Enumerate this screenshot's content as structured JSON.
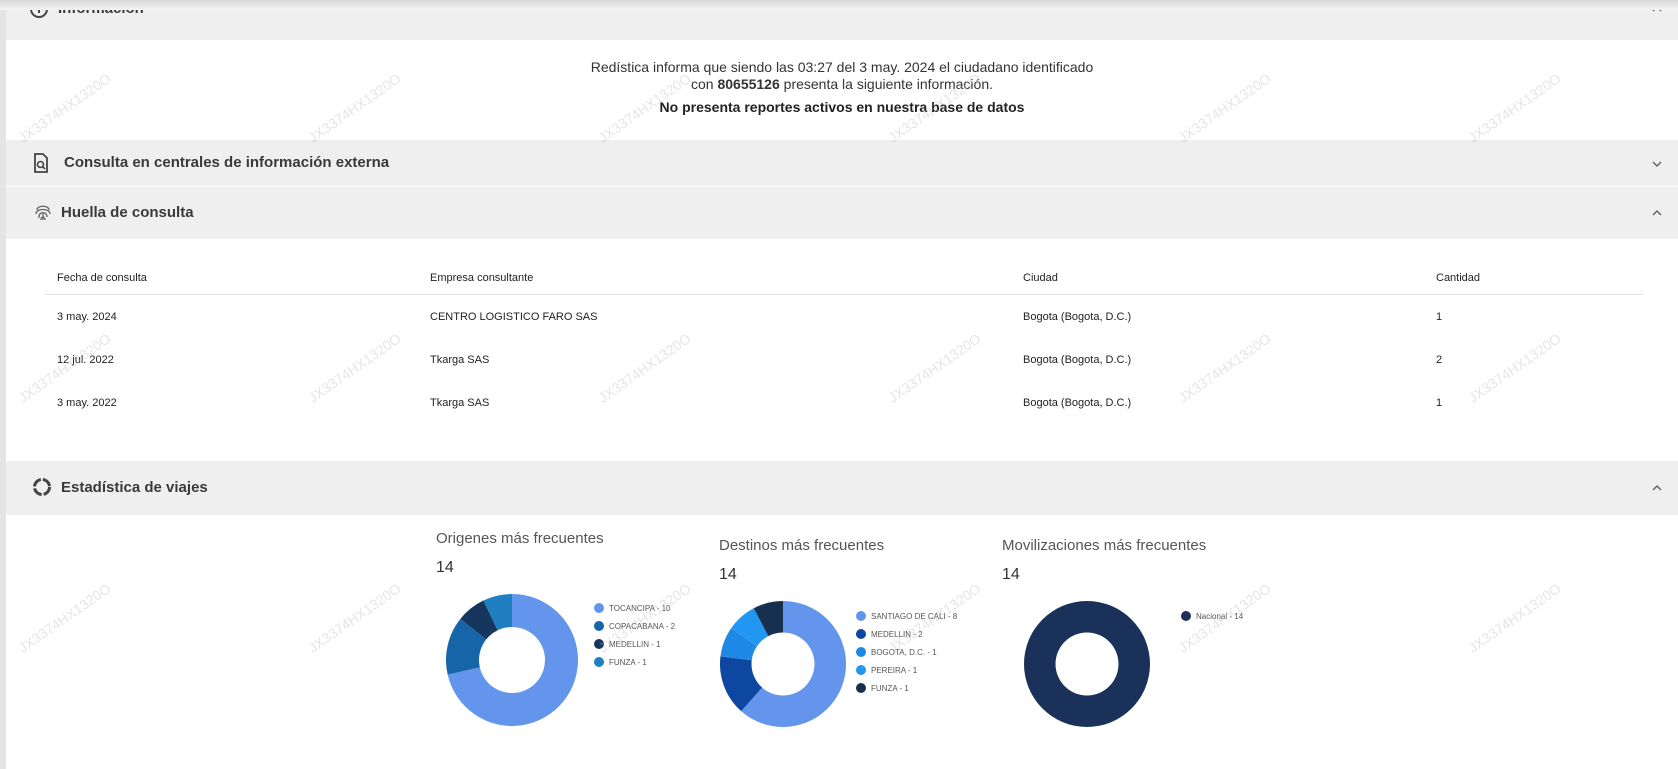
{
  "sections": {
    "info": {
      "title": "Información"
    },
    "external": {
      "title": "Consulta en centrales de información externa"
    },
    "huella": {
      "title": "Huella de consulta"
    },
    "stats": {
      "title": "Estadística de viajes"
    }
  },
  "info": {
    "line1": "Redística informa que siendo las 03:27 del 3 may. 2024 el ciudadano identificado",
    "line2_prefix": "con ",
    "id_number": "80655126",
    "line2_suffix": " presenta la siguiente información.",
    "status": "No presenta reportes activos en nuestra base de datos"
  },
  "huella": {
    "headers": [
      "Fecha de consulta",
      "Empresa consultante",
      "Ciudad",
      "Cantidad"
    ],
    "rows": [
      [
        "3 may. 2024",
        "CENTRO LOGISTICO FARO SAS",
        "Bogota (Bogota, D.C.)",
        "1"
      ],
      [
        "12 jul. 2022",
        "Tkarga SAS",
        "Bogota (Bogota, D.C.)",
        "2"
      ],
      [
        "3 may. 2022",
        "Tkarga SAS",
        "Bogota (Bogota, D.C.)",
        "1"
      ]
    ]
  },
  "watermark": "JX3374HX1320O",
  "chart_data": [
    {
      "type": "pie",
      "title": "Origenes más frecuentes",
      "total": "14",
      "categories": [
        "TOCANCIPA - 10",
        "COPACABANA - 2",
        "MEDELLIN - 1",
        "FUNZA - 1"
      ],
      "values": [
        10,
        2,
        1,
        1
      ],
      "colors": [
        "#6495ed",
        "#1565a8",
        "#17365d",
        "#1f7fc0"
      ]
    },
    {
      "type": "pie",
      "title": "Destinos más frecuentes",
      "total": "14",
      "categories": [
        "SANTIAGO DE CALI - 8",
        "MEDELLIN - 2",
        "BOGOTA, D.C. - 1",
        "PEREIRA - 1",
        "FUNZA - 1"
      ],
      "values": [
        8,
        2,
        1,
        1,
        1
      ],
      "colors": [
        "#6495ed",
        "#0d47a1",
        "#1e88e5",
        "#2196f3",
        "#17304f"
      ]
    },
    {
      "type": "pie",
      "title": "Movilizaciones más frecuentes",
      "total": "14",
      "categories": [
        "Nacional - 14"
      ],
      "values": [
        14
      ],
      "colors": [
        "#1a3259"
      ]
    }
  ]
}
